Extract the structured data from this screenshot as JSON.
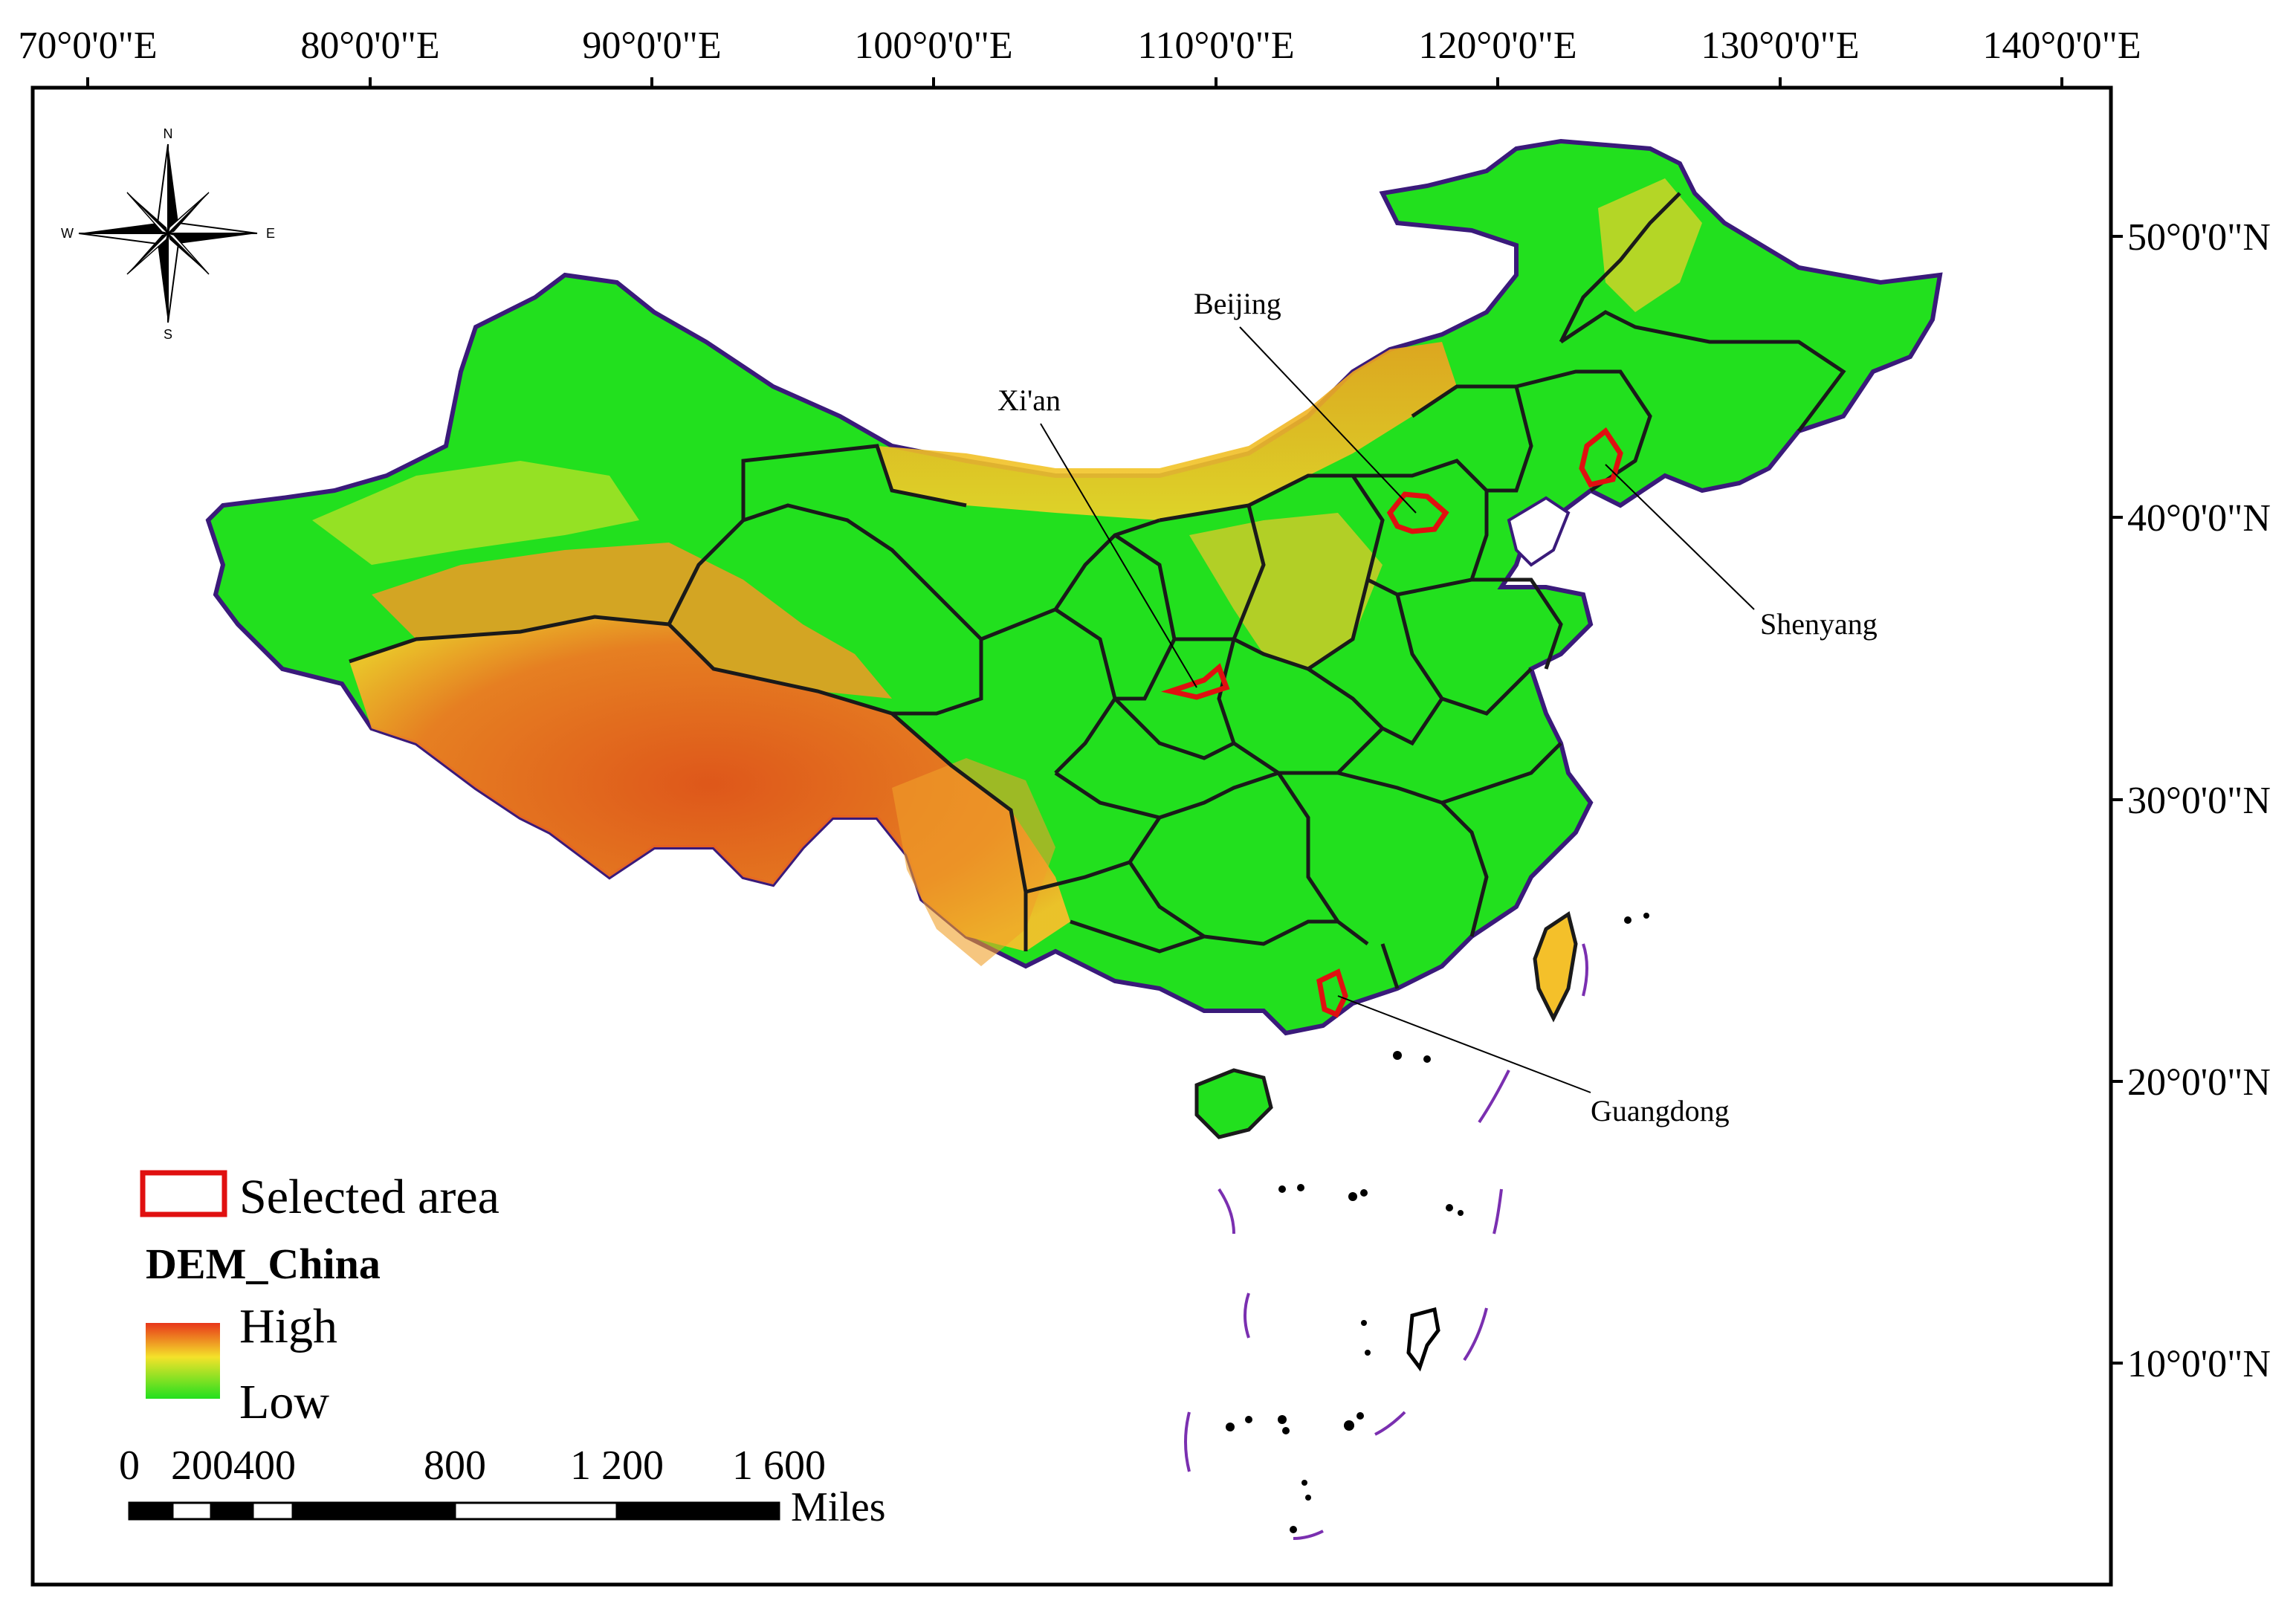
{
  "map": {
    "top_lon_labels": [
      "70°0'0\"E",
      "80°0'0\"E",
      "90°0'0\"E",
      "100°0'0\"E",
      "110°0'0\"E",
      "120°0'0\"E",
      "130°0'0\"E",
      "140°0'0\"E"
    ],
    "right_lat_labels": [
      "50°0'0\"N",
      "40°0'0\"N",
      "30°0'0\"N",
      "20°0'0\"N",
      "10°0'0\"N"
    ],
    "compass": {
      "n": "N",
      "s": "S",
      "e": "E",
      "w": "W"
    },
    "cities": [
      {
        "name": "Beijing"
      },
      {
        "name": "Xi'an"
      },
      {
        "name": "Shenyang"
      },
      {
        "name": "Guangdong"
      }
    ],
    "colors": {
      "low": "#22e01e",
      "mid": "#f4e22a",
      "high": "#e8361a",
      "boundary": "#1a1a1a",
      "outline": "#3a1a7a",
      "selected": "#e01010",
      "dashline": "#7a2fb0"
    }
  },
  "legend": {
    "selected_label": "Selected area",
    "dem_title": "DEM_China",
    "high_label": "High",
    "low_label": "Low"
  },
  "scale_bar": {
    "labels": [
      "0",
      "200400",
      "800",
      "1 200",
      "1 600"
    ],
    "unit": "Miles"
  }
}
